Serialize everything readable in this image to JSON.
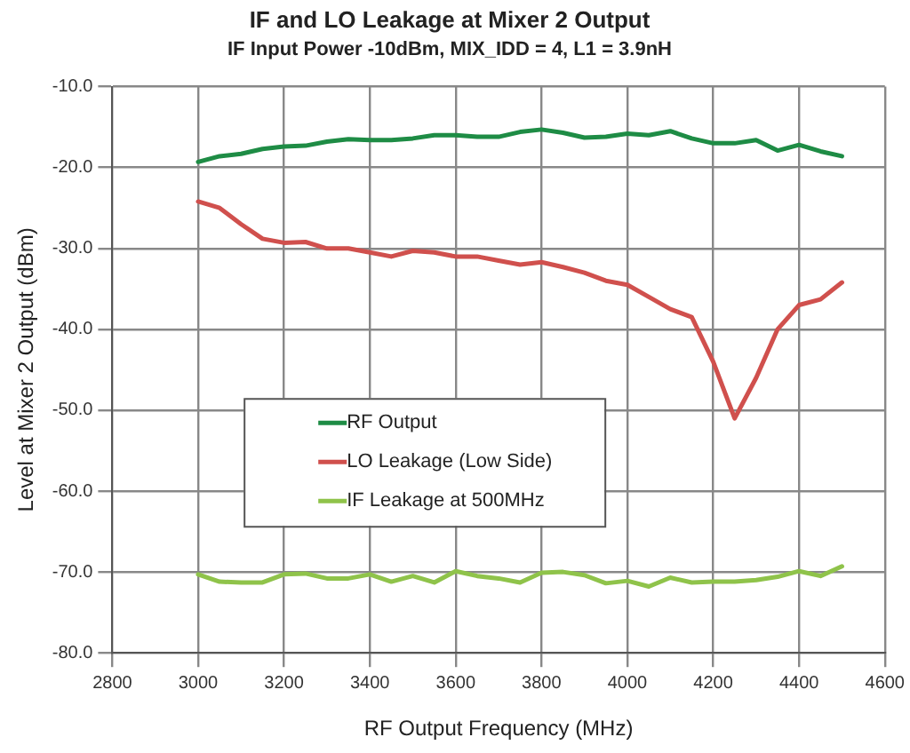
{
  "chart_data": {
    "type": "line",
    "title": "IF and LO Leakage at Mixer 2 Output",
    "subtitle": "IF Input Power -10dBm, MIX_IDD = 4, L1 = 3.9nH",
    "xlabel": "RF Output Frequency (MHz)",
    "ylabel": "Level at Mixer 2 Output (dBm)",
    "x": [
      3000,
      3050,
      3100,
      3150,
      3200,
      3250,
      3300,
      3350,
      3400,
      3450,
      3500,
      3550,
      3600,
      3650,
      3700,
      3750,
      3800,
      3850,
      3900,
      3950,
      4000,
      4050,
      4100,
      4150,
      4200,
      4250,
      4300,
      4350,
      4400,
      4450,
      4500
    ],
    "series": [
      {
        "name": "RF Output",
        "color": "#1e8c45",
        "values": [
          -19.3,
          -18.6,
          -18.3,
          -17.7,
          -17.4,
          -17.3,
          -16.8,
          -16.5,
          -16.6,
          -16.6,
          -16.4,
          -16.0,
          -16.0,
          -16.2,
          -16.2,
          -15.6,
          -15.3,
          -15.7,
          -16.3,
          -16.2,
          -15.8,
          -16.0,
          -15.5,
          -16.4,
          -17.0,
          -17.0,
          -16.6,
          -17.9,
          -17.2,
          -18.0,
          -18.6
        ]
      },
      {
        "name": "LO Leakage (Low Side)",
        "color": "#d0504d",
        "values": [
          -24.2,
          -25.0,
          -27.0,
          -28.8,
          -29.3,
          -29.2,
          -30.0,
          -30.0,
          -30.5,
          -31.0,
          -30.3,
          -30.5,
          -31.0,
          -31.0,
          -31.5,
          -32.0,
          -31.7,
          -32.3,
          -33.0,
          -34.0,
          -34.5,
          -36.0,
          -37.5,
          -38.5,
          -44.0,
          -51.0,
          -46.0,
          -40.0,
          -37.0,
          -36.3,
          -34.2
        ]
      },
      {
        "name": "IF Leakage at 500MHz",
        "color": "#8fc34a",
        "values": [
          -70.3,
          -71.2,
          -71.3,
          -71.3,
          -70.3,
          -70.2,
          -70.8,
          -70.8,
          -70.3,
          -71.2,
          -70.5,
          -71.3,
          -69.9,
          -70.5,
          -70.8,
          -71.3,
          -70.1,
          -70.0,
          -70.4,
          -71.4,
          -71.1,
          -71.8,
          -70.7,
          -71.3,
          -71.2,
          -71.2,
          -71.0,
          -70.6,
          -69.9,
          -70.5,
          -69.3
        ]
      }
    ],
    "xlim": [
      2800,
      4600
    ],
    "xticks": [
      2800,
      3000,
      3200,
      3400,
      3600,
      3800,
      4000,
      4200,
      4400,
      4600
    ],
    "ylim": [
      -80,
      -10
    ],
    "yticks": [
      {
        "value": -80,
        "label": "-80.0"
      },
      {
        "value": -70,
        "label": "-70.0"
      },
      {
        "value": -60,
        "label": "-60.0"
      },
      {
        "value": -50,
        "label": "-50.0"
      },
      {
        "value": -40,
        "label": "-40.0"
      },
      {
        "value": -30,
        "label": "-30.0"
      },
      {
        "value": -20,
        "label": "-20.0"
      },
      {
        "value": -10,
        "label": "-10.0"
      }
    ],
    "grid": true,
    "legend": "left",
    "marker": "none",
    "line_style": "solid"
  }
}
